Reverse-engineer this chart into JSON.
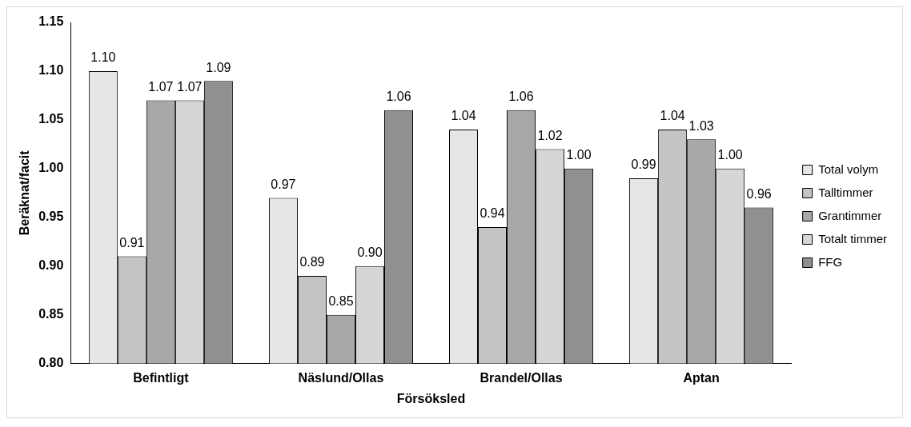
{
  "chart_data": {
    "type": "bar",
    "xlabel": "Försöksled",
    "ylabel": "Beräknat/facit",
    "categories": [
      "Befintligt",
      "Näslund/Ollas",
      "Brandel/Ollas",
      "Aptan"
    ],
    "series": [
      {
        "name": "Total volym",
        "color": "#e6e6e6",
        "values": [
          1.1,
          0.97,
          1.04,
          0.99
        ],
        "value_labels": [
          "1.10",
          "0.97",
          "1.04",
          "0.99"
        ]
      },
      {
        "name": "Talltimmer",
        "color": "#c4c4c4",
        "values": [
          0.91,
          0.89,
          0.94,
          1.04
        ],
        "value_labels": [
          "0.91",
          "0.89",
          "0.94",
          "1.04"
        ]
      },
      {
        "name": "Grantimmer",
        "color": "#a8a8a8",
        "values": [
          1.07,
          0.85,
          1.06,
          1.03
        ],
        "value_labels": [
          "1.07",
          "0.85",
          "1.06",
          "1.03"
        ]
      },
      {
        "name": "Totalt timmer",
        "color": "#d6d6d6",
        "values": [
          1.07,
          0.9,
          1.02,
          1.0
        ],
        "value_labels": [
          "1.07",
          "0.90",
          "1.02",
          "1.00"
        ]
      },
      {
        "name": "FFG",
        "color": "#909090",
        "values": [
          1.09,
          1.06,
          1.0,
          0.96
        ],
        "value_labels": [
          "1.09",
          "1.06",
          "1.00",
          "0.96"
        ]
      }
    ],
    "ylim": [
      0.8,
      1.15
    ],
    "yticks": [
      {
        "value": 0.8,
        "label": "0.80"
      },
      {
        "value": 0.85,
        "label": "0.85"
      },
      {
        "value": 0.9,
        "label": "0.90"
      },
      {
        "value": 0.95,
        "label": "0.95"
      },
      {
        "value": 1.0,
        "label": "1.00"
      },
      {
        "value": 1.05,
        "label": "1.05"
      },
      {
        "value": 1.1,
        "label": "1.10"
      },
      {
        "value": 1.15,
        "label": "1.15"
      }
    ],
    "grid": false,
    "legend": "right"
  }
}
